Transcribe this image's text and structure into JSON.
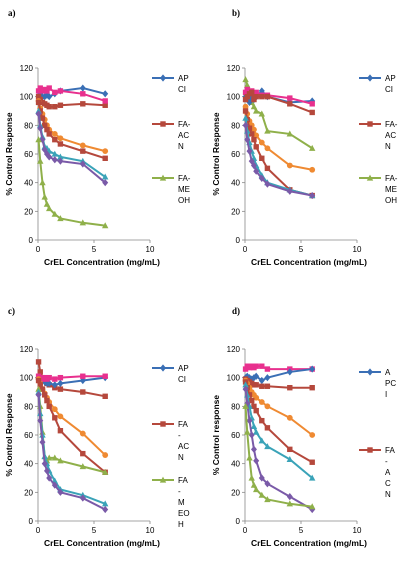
{
  "chart_data": [
    {
      "type": "line",
      "panel_label": "a)",
      "xlabel": "CrEL Concentration (mg/mL)",
      "ylabel": "% Control Response",
      "xlim": [
        0,
        10
      ],
      "ylim": [
        0,
        120
      ],
      "xticks": [
        0,
        5,
        10
      ],
      "yticks": [
        0,
        20,
        40,
        60,
        80,
        100,
        120
      ],
      "legend": [
        {
          "lines": [
            "AP",
            "CI"
          ],
          "color": "#3a6fb5",
          "marker": "diamond"
        },
        {
          "lines": [
            "FA-",
            "AC",
            "N"
          ],
          "color": "#b5483c",
          "marker": "square"
        },
        {
          "lines": [
            "FA-",
            "ME",
            "OH"
          ],
          "color": "#8fb04a",
          "marker": "triangle"
        }
      ],
      "series": [
        {
          "color": "#3a6fb5",
          "marker": "diamond",
          "x": [
            0.05,
            0.2,
            0.4,
            0.6,
            0.8,
            1.0,
            1.5,
            2.0,
            4.0,
            6.0
          ],
          "y": [
            100,
            102,
            100,
            100,
            101,
            100,
            102,
            104,
            106,
            102
          ]
        },
        {
          "color": "#b5483c",
          "marker": "square",
          "x": [
            0.05,
            0.2,
            0.4,
            0.6,
            0.8,
            1.0,
            1.5,
            2.0,
            4.0,
            6.0
          ],
          "y": [
            100,
            98,
            96,
            95,
            94,
            93,
            93,
            94,
            95,
            94
          ]
        },
        {
          "color": "#e8308e",
          "marker": "square",
          "x": [
            0.05,
            0.2,
            0.4,
            0.6,
            0.8,
            1.0,
            1.5,
            2.0,
            4.0,
            6.0
          ],
          "y": [
            104,
            106,
            104,
            105,
            104,
            106,
            103,
            104,
            102,
            97
          ]
        },
        {
          "color": "#ef8a32",
          "marker": "circle",
          "x": [
            0.05,
            0.2,
            0.4,
            0.6,
            0.8,
            1.0,
            1.5,
            2.0,
            4.0,
            6.0
          ],
          "y": [
            97,
            92,
            88,
            84,
            80,
            77,
            74,
            71,
            66,
            62
          ]
        },
        {
          "color": "#b5483c",
          "marker": "square",
          "x": [
            0.05,
            0.2,
            0.4,
            0.6,
            0.8,
            1.0,
            1.5,
            2.0,
            4.0,
            6.0
          ],
          "y": [
            96,
            90,
            85,
            80,
            77,
            74,
            70,
            67,
            62,
            57
          ]
        },
        {
          "color": "#3aa3b8",
          "marker": "triangle",
          "x": [
            0.05,
            0.2,
            0.4,
            0.6,
            0.8,
            1.0,
            1.5,
            2.0,
            4.0,
            6.0
          ],
          "y": [
            90,
            80,
            72,
            65,
            64,
            62,
            60,
            58,
            55,
            44
          ]
        },
        {
          "color": "#7a5aa8",
          "marker": "diamond",
          "x": [
            0.05,
            0.2,
            0.4,
            0.6,
            0.8,
            1.0,
            1.5,
            2.0,
            4.0,
            6.0
          ],
          "y": [
            88,
            78,
            70,
            63,
            60,
            58,
            56,
            55,
            53,
            40
          ]
        },
        {
          "color": "#8fb04a",
          "marker": "triangle",
          "x": [
            0.05,
            0.2,
            0.4,
            0.6,
            0.8,
            1.0,
            1.5,
            2.0,
            4.0,
            6.0
          ],
          "y": [
            70,
            55,
            40,
            30,
            25,
            22,
            18,
            15,
            12,
            10
          ]
        }
      ]
    },
    {
      "type": "line",
      "panel_label": "b)",
      "xlabel": "CrEL Concentration (mg/mL)",
      "ylabel": "% Control Response",
      "xlim": [
        0,
        10
      ],
      "ylim": [
        0,
        120
      ],
      "xticks": [
        0,
        5,
        10
      ],
      "yticks": [
        0,
        20,
        40,
        60,
        80,
        100,
        120
      ],
      "legend": [
        {
          "lines": [
            "AP",
            "CI"
          ],
          "color": "#3a6fb5",
          "marker": "diamond"
        },
        {
          "lines": [
            "FA-",
            "AC",
            "N"
          ],
          "color": "#b5483c",
          "marker": "square"
        },
        {
          "lines": [
            "FA-",
            "ME",
            "OH"
          ],
          "color": "#8fb04a",
          "marker": "triangle"
        }
      ],
      "series": [
        {
          "color": "#8fb04a",
          "marker": "triangle",
          "x": [
            0.05,
            0.2,
            0.4,
            0.6,
            0.8,
            1.0,
            1.5,
            2.0,
            4.0,
            6.0
          ],
          "y": [
            112,
            108,
            100,
            96,
            93,
            90,
            88,
            76,
            74,
            64
          ]
        },
        {
          "color": "#3a6fb5",
          "marker": "diamond",
          "x": [
            0.05,
            0.2,
            0.4,
            0.6,
            0.8,
            1.0,
            1.5,
            2.0,
            4.0,
            6.0
          ],
          "y": [
            100,
            98,
            96,
            100,
            98,
            100,
            104,
            100,
            96,
            97
          ]
        },
        {
          "color": "#e8308e",
          "marker": "square",
          "x": [
            0.05,
            0.2,
            0.4,
            0.6,
            0.8,
            1.0,
            1.5,
            2.0,
            4.0,
            6.0
          ],
          "y": [
            103,
            105,
            102,
            104,
            102,
            103,
            101,
            101,
            99,
            95
          ]
        },
        {
          "color": "#b5483c",
          "marker": "square",
          "x": [
            0.05,
            0.2,
            0.4,
            0.6,
            0.8,
            1.0,
            1.5,
            2.0,
            4.0,
            6.0
          ],
          "y": [
            98,
            100,
            102,
            103,
            98,
            100,
            100,
            100,
            95,
            89
          ]
        },
        {
          "color": "#ef8a32",
          "marker": "circle",
          "x": [
            0.05,
            0.2,
            0.4,
            0.6,
            0.8,
            1.0,
            1.5,
            2.0,
            4.0,
            6.0
          ],
          "y": [
            93,
            88,
            83,
            80,
            77,
            73,
            68,
            64,
            52,
            49
          ]
        },
        {
          "color": "#b5483c",
          "marker": "square",
          "x": [
            0.05,
            0.2,
            0.4,
            0.6,
            0.8,
            1.0,
            1.5,
            2.0,
            4.0,
            6.0
          ],
          "y": [
            90,
            84,
            78,
            74,
            70,
            65,
            57,
            50,
            35,
            31
          ]
        },
        {
          "color": "#3aa3b8",
          "marker": "triangle",
          "x": [
            0.05,
            0.2,
            0.4,
            0.6,
            0.8,
            1.0,
            1.5,
            2.0,
            4.0,
            6.0
          ],
          "y": [
            85,
            76,
            68,
            62,
            57,
            52,
            45,
            40,
            35,
            31
          ]
        },
        {
          "color": "#7a5aa8",
          "marker": "diamond",
          "x": [
            0.05,
            0.2,
            0.4,
            0.6,
            0.8,
            1.0,
            1.5,
            2.0,
            4.0,
            6.0
          ],
          "y": [
            80,
            70,
            62,
            55,
            52,
            48,
            43,
            39,
            34,
            31
          ]
        }
      ]
    },
    {
      "type": "line",
      "panel_label": "c)",
      "xlabel": "CrEL Concentration (mg/mL)",
      "ylabel": "% Control Response",
      "xlim": [
        0,
        10
      ],
      "ylim": [
        0,
        120
      ],
      "xticks": [
        0,
        5,
        10
      ],
      "yticks": [
        0,
        20,
        40,
        60,
        80,
        100,
        120
      ],
      "legend": [
        {
          "lines": [
            "AP",
            "CI"
          ],
          "color": "#3a6fb5",
          "marker": "diamond"
        },
        {
          "lines": [
            "FA",
            "-",
            "AC",
            "N"
          ],
          "color": "#b5483c",
          "marker": "square"
        },
        {
          "lines": [
            "FA",
            "-",
            "M",
            "EO",
            "H"
          ],
          "color": "#8fb04a",
          "marker": "triangle"
        }
      ],
      "series": [
        {
          "color": "#b5483c",
          "marker": "square",
          "x": [
            0.05,
            0.2,
            0.4,
            0.6,
            0.8,
            1.0,
            1.5,
            2.0,
            4.0,
            6.0
          ],
          "y": [
            111,
            104,
            100,
            98,
            96,
            95,
            93,
            92,
            90,
            87
          ]
        },
        {
          "color": "#3a6fb5",
          "marker": "diamond",
          "x": [
            0.05,
            0.2,
            0.4,
            0.6,
            0.8,
            1.0,
            1.5,
            2.0,
            4.0,
            6.0
          ],
          "y": [
            100,
            99,
            98,
            97,
            96,
            96,
            95,
            96,
            98,
            100
          ]
        },
        {
          "color": "#e8308e",
          "marker": "square",
          "x": [
            0.05,
            0.2,
            0.4,
            0.6,
            0.8,
            1.0,
            1.5,
            2.0,
            4.0,
            6.0
          ],
          "y": [
            101,
            100,
            99,
            100,
            99,
            100,
            99,
            100,
            101,
            101
          ]
        },
        {
          "color": "#ef8a32",
          "marker": "circle",
          "x": [
            0.05,
            0.2,
            0.4,
            0.6,
            0.8,
            1.0,
            1.5,
            2.0,
            4.0,
            6.0
          ],
          "y": [
            99,
            96,
            92,
            89,
            86,
            83,
            78,
            73,
            61,
            46
          ]
        },
        {
          "color": "#b5483c",
          "marker": "square",
          "x": [
            0.05,
            0.2,
            0.4,
            0.6,
            0.8,
            1.0,
            1.5,
            2.0,
            4.0,
            6.0
          ],
          "y": [
            98,
            95,
            92,
            88,
            84,
            80,
            72,
            63,
            47,
            34
          ]
        },
        {
          "color": "#8fb04a",
          "marker": "triangle",
          "x": [
            0.05,
            0.2,
            0.4,
            0.6,
            0.8,
            1.0,
            1.5,
            2.0,
            4.0,
            6.0
          ],
          "y": [
            92,
            80,
            62,
            45,
            42,
            44,
            44,
            42,
            38,
            34
          ]
        },
        {
          "color": "#3aa3b8",
          "marker": "triangle",
          "x": [
            0.05,
            0.2,
            0.4,
            0.6,
            0.8,
            1.0,
            1.5,
            2.0,
            4.0,
            6.0
          ],
          "y": [
            90,
            75,
            60,
            45,
            40,
            35,
            28,
            22,
            18,
            12
          ]
        },
        {
          "color": "#7a5aa8",
          "marker": "diamond",
          "x": [
            0.05,
            0.2,
            0.4,
            0.6,
            0.8,
            1.0,
            1.5,
            2.0,
            4.0,
            6.0
          ],
          "y": [
            88,
            70,
            55,
            40,
            35,
            30,
            25,
            20,
            16,
            8
          ]
        }
      ]
    },
    {
      "type": "line",
      "panel_label": "d)",
      "xlabel": "CrEL Concentration (mg/mL)",
      "ylabel": "% Control response",
      "xlim": [
        0,
        10
      ],
      "ylim": [
        0,
        120
      ],
      "xticks": [
        0,
        5,
        10
      ],
      "yticks": [
        0,
        20,
        40,
        60,
        80,
        100,
        120
      ],
      "legend": [
        {
          "lines": [
            "A",
            "PC",
            "I"
          ],
          "color": "#3a6fb5",
          "marker": "diamond"
        },
        {
          "lines": [
            "FA",
            "-",
            "A",
            "C",
            "N"
          ],
          "color": "#b5483c",
          "marker": "square"
        }
      ],
      "series": [
        {
          "color": "#e8308e",
          "marker": "square",
          "x": [
            0.05,
            0.2,
            0.4,
            0.6,
            0.8,
            1.0,
            1.5,
            2.0,
            4.0,
            6.0
          ],
          "y": [
            106,
            108,
            107,
            108,
            107,
            108,
            108,
            106,
            106,
            106
          ]
        },
        {
          "color": "#3a6fb5",
          "marker": "diamond",
          "x": [
            0.05,
            0.2,
            0.4,
            0.6,
            0.8,
            1.0,
            1.5,
            2.0,
            4.0,
            6.0
          ],
          "y": [
            100,
            101,
            100,
            99,
            100,
            101,
            98,
            100,
            104,
            106
          ]
        },
        {
          "color": "#b5483c",
          "marker": "square",
          "x": [
            0.05,
            0.2,
            0.4,
            0.6,
            0.8,
            1.0,
            1.5,
            2.0,
            4.0,
            6.0
          ],
          "y": [
            99,
            98,
            97,
            96,
            95,
            95,
            94,
            94,
            93,
            93
          ]
        },
        {
          "color": "#ef8a32",
          "marker": "circle",
          "x": [
            0.05,
            0.2,
            0.4,
            0.6,
            0.8,
            1.0,
            1.5,
            2.0,
            4.0,
            6.0
          ],
          "y": [
            98,
            96,
            93,
            90,
            88,
            86,
            83,
            80,
            72,
            60
          ]
        },
        {
          "color": "#b5483c",
          "marker": "square",
          "x": [
            0.05,
            0.2,
            0.4,
            0.6,
            0.8,
            1.0,
            1.5,
            2.0,
            4.0,
            6.0
          ],
          "y": [
            97,
            93,
            88,
            84,
            80,
            77,
            70,
            65,
            50,
            41
          ]
        },
        {
          "color": "#3aa3b8",
          "marker": "triangle",
          "x": [
            0.05,
            0.2,
            0.4,
            0.6,
            0.8,
            1.0,
            1.5,
            2.0,
            4.0,
            6.0
          ],
          "y": [
            95,
            88,
            80,
            72,
            66,
            62,
            56,
            52,
            43,
            30
          ]
        },
        {
          "color": "#7a5aa8",
          "marker": "diamond",
          "x": [
            0.05,
            0.2,
            0.4,
            0.6,
            0.8,
            1.0,
            1.5,
            2.0,
            4.0,
            6.0
          ],
          "y": [
            92,
            82,
            70,
            60,
            50,
            42,
            30,
            26,
            17,
            8
          ]
        },
        {
          "color": "#8fb04a",
          "marker": "triangle",
          "x": [
            0.05,
            0.2,
            0.4,
            0.6,
            0.8,
            1.0,
            1.5,
            2.0,
            4.0,
            6.0
          ],
          "y": [
            80,
            62,
            44,
            30,
            25,
            22,
            18,
            15,
            12,
            10
          ]
        }
      ]
    }
  ]
}
